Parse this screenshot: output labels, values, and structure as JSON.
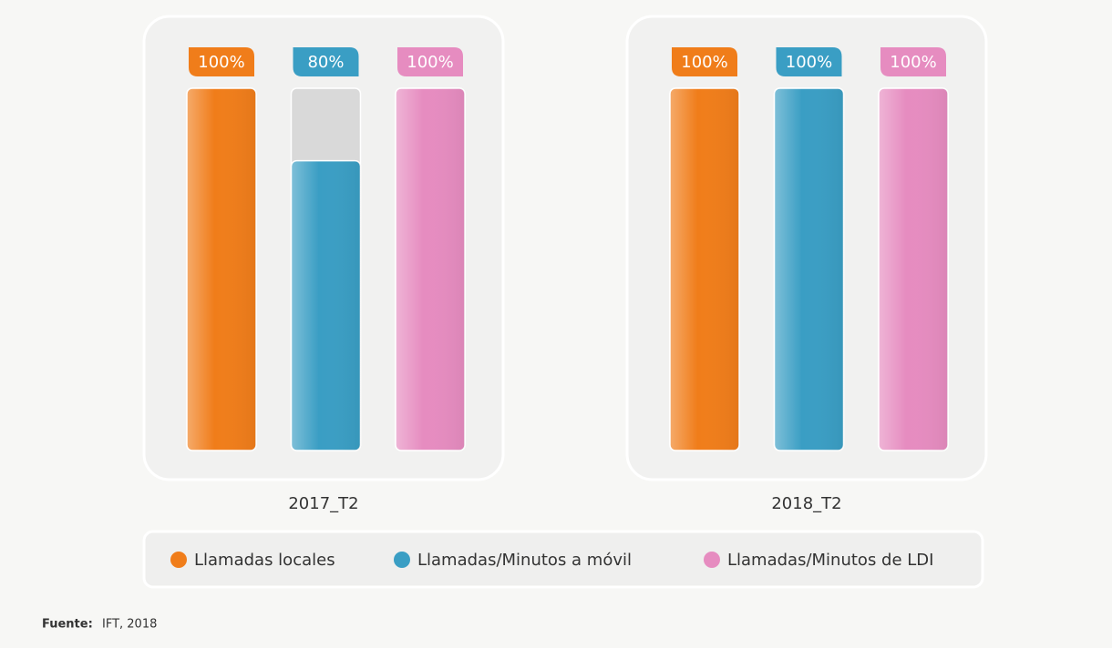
{
  "chart_data": {
    "type": "bar",
    "categories": [
      "2017_T2",
      "2018_T2"
    ],
    "series": [
      {
        "name": "Llamadas locales",
        "color": "#f07d1a",
        "values": [
          100,
          100
        ],
        "value_labels": [
          "100%",
          "100%"
        ]
      },
      {
        "name": "Llamadas/Minutos a móvil",
        "color": "#3a9ec4",
        "values": [
          80,
          100
        ],
        "value_labels": [
          "80%",
          "100%"
        ]
      },
      {
        "name": "Llamadas/Minutos de LDI",
        "color": "#e68cc0",
        "values": [
          100,
          100
        ],
        "value_labels": [
          "100%",
          "100%"
        ]
      }
    ],
    "ylim": [
      0,
      100
    ],
    "source_label": "Fuente:",
    "source": "IFT, 2018"
  }
}
